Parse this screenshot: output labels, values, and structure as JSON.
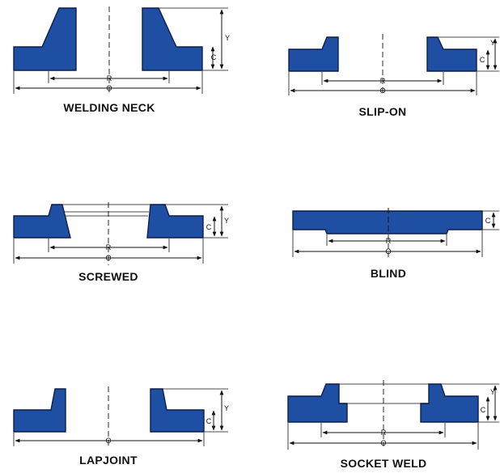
{
  "flanges": [
    {
      "title": "WELDING NECK",
      "dims": {
        "R": "R",
        "O": "O",
        "C": "C",
        "Y": "Y"
      }
    },
    {
      "title": "SLIP-ON",
      "dims": {
        "R": "R",
        "O": "O",
        "C": "C",
        "Y": "Y"
      }
    },
    {
      "title": "SCREWED",
      "dims": {
        "R": "R",
        "O": "O",
        "C": "C",
        "Y": "Y"
      }
    },
    {
      "title": "BLIND",
      "dims": {
        "R": "R",
        "O": "O",
        "C": "C"
      }
    },
    {
      "title": "LAPJOINT",
      "dims": {
        "O": "O",
        "C": "C",
        "Y": "Y"
      }
    },
    {
      "title": "SOCKET WELD",
      "dims": {
        "R": "R",
        "O": "O",
        "C": "C",
        "Y": "Y"
      }
    }
  ],
  "colors": {
    "flange_fill": "#1f4fa3",
    "flange_outline": "#0a1f4a"
  }
}
